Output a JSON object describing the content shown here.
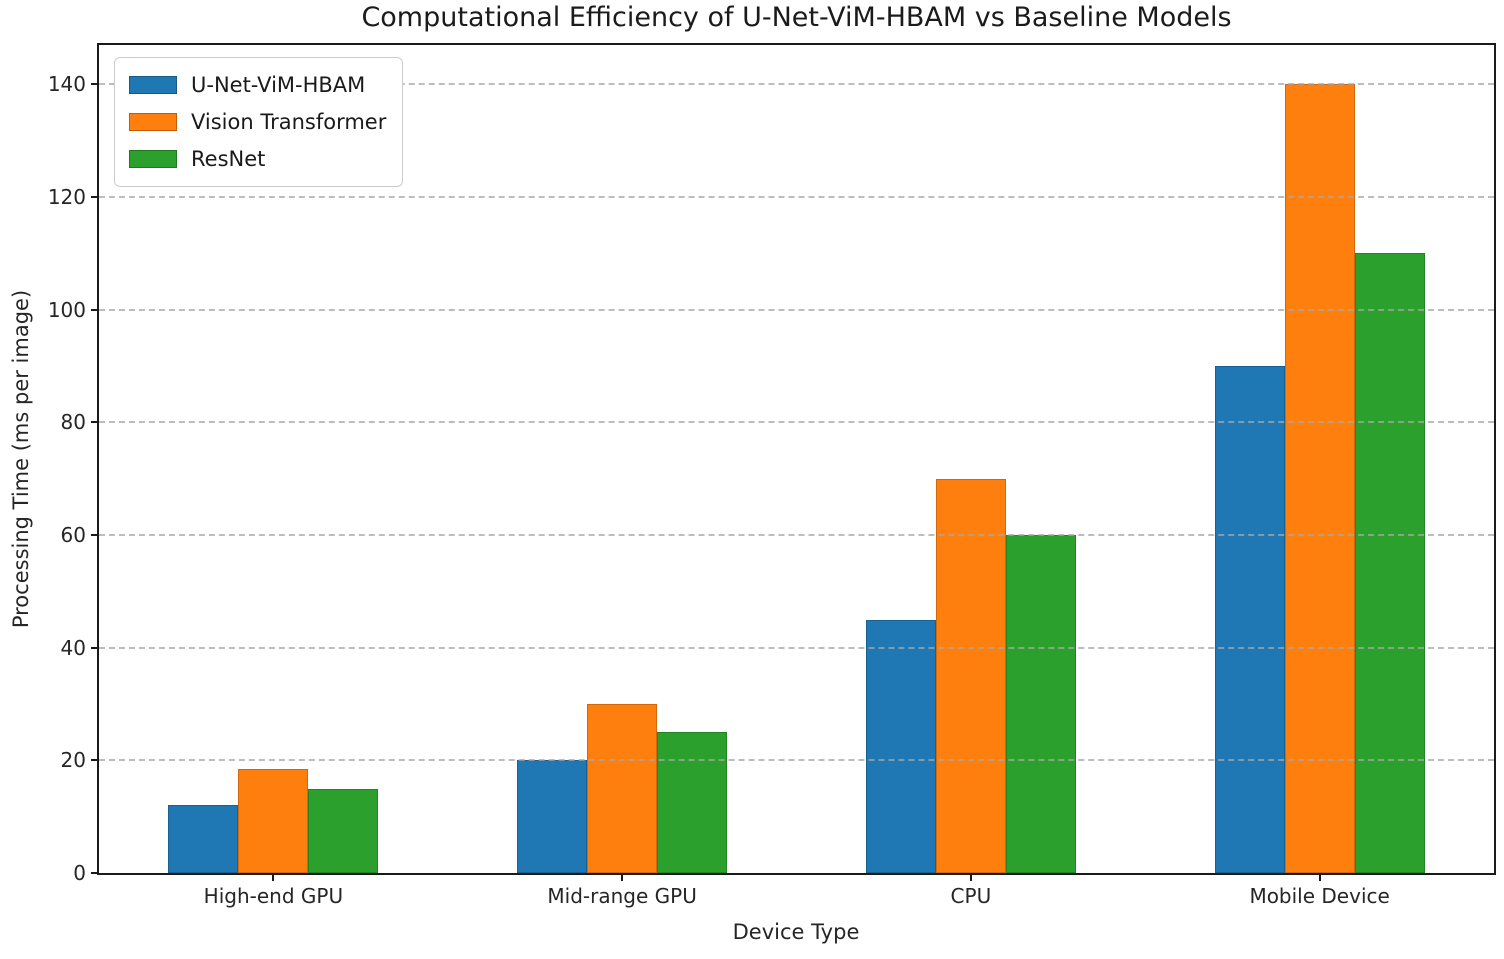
{
  "chart_data": {
    "type": "bar",
    "title": "Computational Efficiency of U-Net-ViM-HBAM vs Baseline Models",
    "categories": [
      "High-end GPU",
      "Mid-range GPU",
      "CPU",
      "Mobile Device"
    ],
    "series": [
      {
        "name": "U-Net-ViM-HBAM",
        "color": "#1f77b4",
        "values": [
          12,
          20,
          45,
          90
        ]
      },
      {
        "name": "Vision Transformer",
        "color": "#ff7f0e",
        "values": [
          18.5,
          30,
          70,
          140
        ]
      },
      {
        "name": "ResNet",
        "color": "#2ca02c",
        "values": [
          15,
          25,
          60,
          110
        ]
      }
    ],
    "xlabel": "Device Type",
    "ylabel": "Processing Time (ms per image)",
    "ylim": [
      0,
      147
    ],
    "yticks": [
      0,
      20,
      40,
      60,
      80,
      100,
      120,
      140
    ],
    "grid": {
      "axis": "y",
      "style": "dashed",
      "color": "#a7a7a7",
      "above_bars": true
    },
    "legend": {
      "position": "upper-left",
      "border_color": "#cccccc",
      "background": "#ffffff"
    },
    "spine_color": "#1a1a1a"
  }
}
